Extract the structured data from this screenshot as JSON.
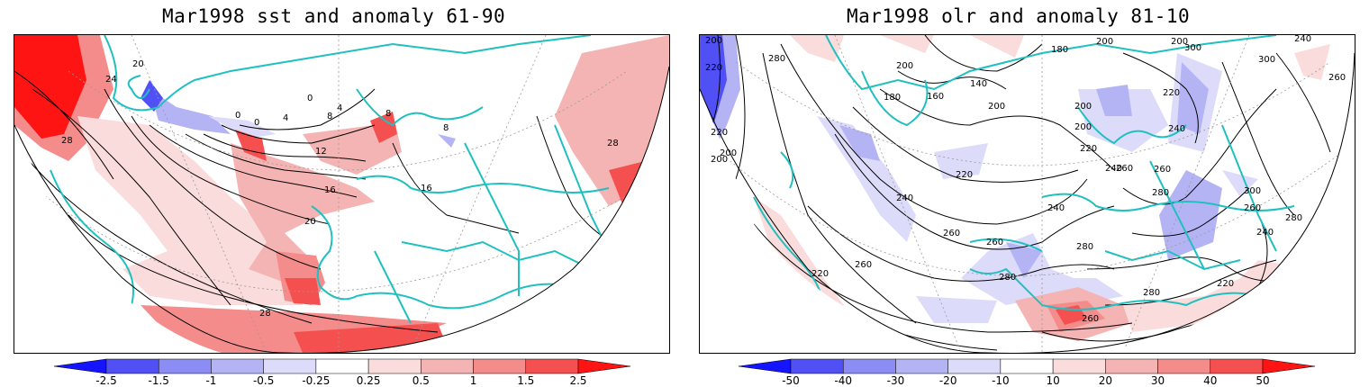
{
  "left_map": {
    "title": "Mar1998 sst and anomaly 61-90",
    "contour_labels": [
      "0",
      "0",
      "0",
      "4",
      "4",
      "8",
      "8",
      "8",
      "12",
      "16",
      "16",
      "20",
      "20",
      "24",
      "28",
      "28",
      "28"
    ],
    "colorbar": {
      "ticks": [
        "-2.5",
        "-1.5",
        "-1",
        "-0.5",
        "-0.25",
        "0.25",
        "0.5",
        "1",
        "1.5",
        "2.5"
      ],
      "colors": [
        "#1414ff",
        "#5050f5",
        "#8c8cf5",
        "#b4b4f5",
        "#dcdcfa",
        "#ffffff",
        "#fadcdc",
        "#f5b4b4",
        "#f58c8c",
        "#f55050",
        "#ff1414"
      ]
    }
  },
  "right_map": {
    "title": "Mar1998 olr and anomaly 81-10",
    "contour_labels": [
      "200",
      "200",
      "200",
      "220",
      "220",
      "280",
      "180",
      "200",
      "200",
      "300",
      "300",
      "240",
      "260",
      "160",
      "140",
      "200",
      "200",
      "200",
      "220",
      "180",
      "200",
      "220",
      "240",
      "260",
      "220",
      "240",
      "260",
      "280",
      "300",
      "240",
      "260",
      "280",
      "260",
      "240",
      "260",
      "220",
      "260",
      "280",
      "280",
      "220",
      "280",
      "260",
      "240"
    ],
    "colorbar": {
      "ticks": [
        "-50",
        "-40",
        "-30",
        "-20",
        "-10",
        "10",
        "20",
        "30",
        "40",
        "50"
      ],
      "colors": [
        "#1414ff",
        "#5050f5",
        "#8c8cf5",
        "#b4b4f5",
        "#dcdcfa",
        "#ffffff",
        "#fadcdc",
        "#f5b4b4",
        "#f58c8c",
        "#f55050",
        "#ff1414"
      ]
    }
  },
  "styles": {
    "coast_color": "#20c0c0",
    "grid_color": "#999999"
  }
}
